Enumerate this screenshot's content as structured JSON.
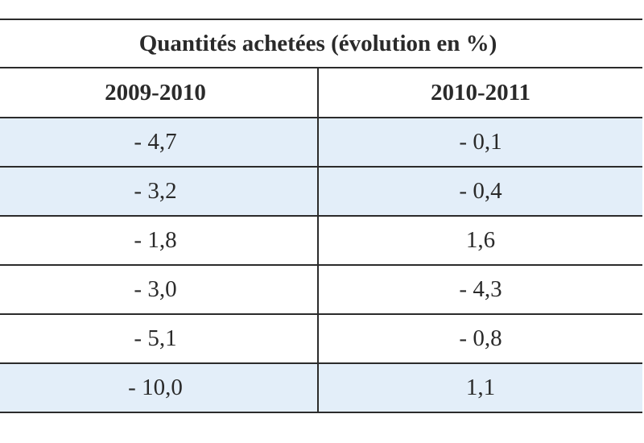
{
  "table": {
    "title": "Quantités achetées (évolution en %)",
    "columns": [
      "2009-2010",
      "2010-2011"
    ],
    "rows": [
      {
        "values": [
          "- 4,7",
          "- 0,1"
        ],
        "shaded": true
      },
      {
        "values": [
          "- 3,2",
          "- 0,4"
        ],
        "shaded": true
      },
      {
        "values": [
          "- 1,8",
          "1,6"
        ],
        "shaded": false
      },
      {
        "values": [
          "- 3,0",
          "- 4,3"
        ],
        "shaded": false
      },
      {
        "values": [
          "- 5,1",
          "- 0,8"
        ],
        "shaded": false
      },
      {
        "values": [
          "- 10,0",
          "1,1"
        ],
        "shaded": true
      }
    ]
  },
  "colors": {
    "shaded_row": "#e3eef9",
    "border": "#2b2b2b",
    "text": "#2a2a2a"
  }
}
